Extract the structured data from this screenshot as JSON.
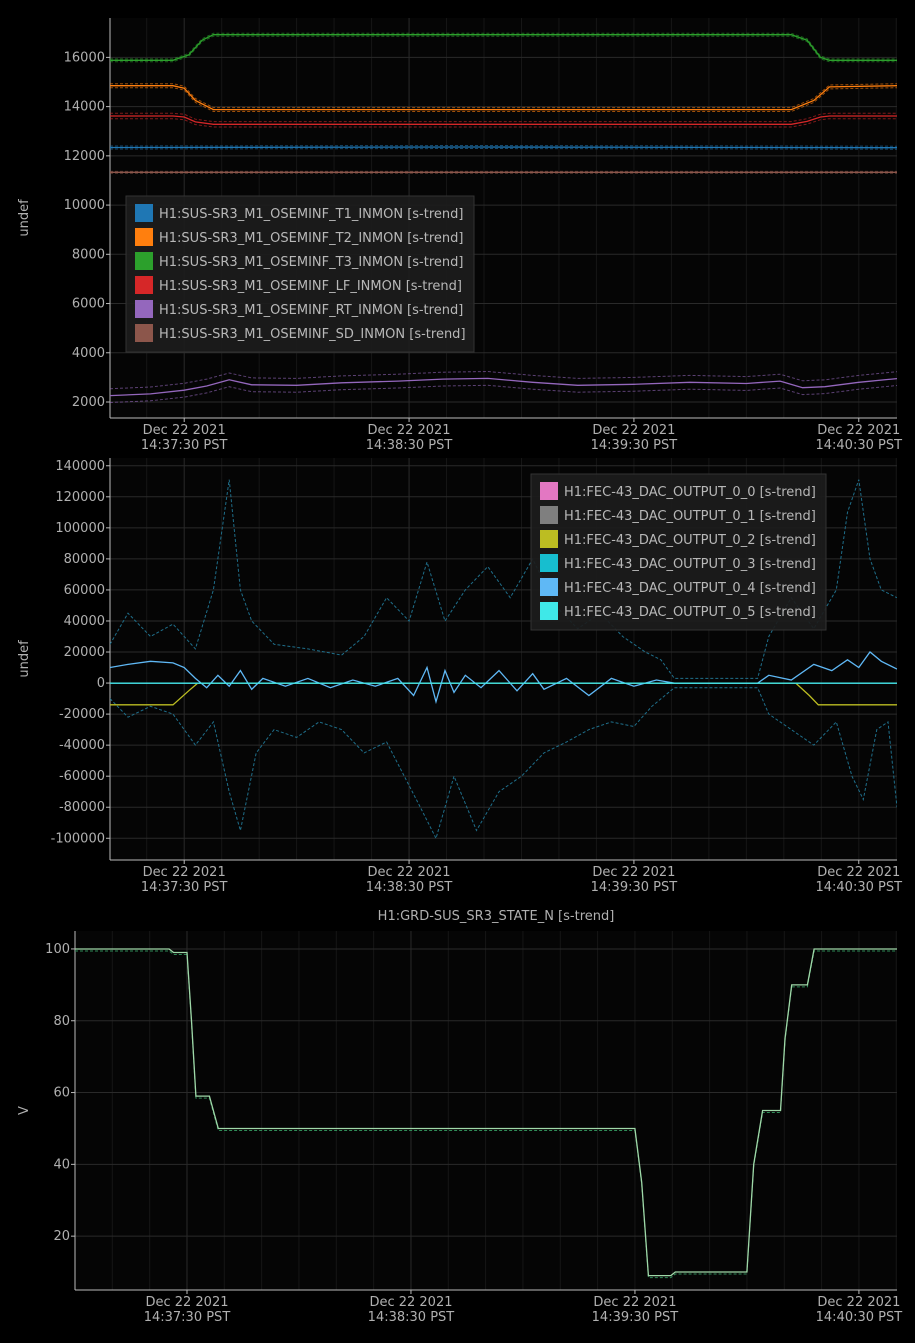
{
  "chart_data": [
    {
      "type": "line",
      "title": "",
      "ylabel": "undef",
      "x_ticks": [
        {
          "t": 0.5,
          "date": "Dec 22 2021",
          "time": "14:37:30 PST"
        },
        {
          "t": 1.5,
          "date": "Dec 22 2021",
          "time": "14:38:30 PST"
        },
        {
          "t": 2.5,
          "date": "Dec 22 2021",
          "time": "14:39:30 PST"
        },
        {
          "t": 3.5,
          "date": "Dec 22 2021",
          "time": "14:40:30 PST"
        }
      ],
      "xlim": [
        0.17,
        3.67
      ],
      "ylim": [
        1350,
        17600
      ],
      "y_ticks": [
        2000,
        4000,
        6000,
        8000,
        10000,
        12000,
        14000,
        16000
      ],
      "grid": true,
      "legend_position": "center-left",
      "series": [
        {
          "name": "H1:SUS-SR3_M1_OSEMINF_T1_INMON [s-trend]",
          "color": "#1f77b4",
          "band": 60,
          "points": [
            [
              0.17,
              12340
            ],
            [
              1.8,
              12360
            ],
            [
              3.67,
              12330
            ]
          ]
        },
        {
          "name": "H1:SUS-SR3_M1_OSEMINF_T2_INMON [s-trend]",
          "color": "#ff7f0e",
          "band": 80,
          "points": [
            [
              0.17,
              14850
            ],
            [
              0.45,
              14850
            ],
            [
              0.5,
              14750
            ],
            [
              0.55,
              14250
            ],
            [
              0.63,
              13880
            ],
            [
              3.2,
              13880
            ],
            [
              3.3,
              14250
            ],
            [
              3.37,
              14800
            ],
            [
              3.67,
              14850
            ]
          ]
        },
        {
          "name": "H1:SUS-SR3_M1_OSEMINF_T3_INMON [s-trend]",
          "color": "#2ca02c",
          "band": 60,
          "points": [
            [
              0.17,
              15880
            ],
            [
              0.45,
              15880
            ],
            [
              0.52,
              16100
            ],
            [
              0.58,
              16700
            ],
            [
              0.63,
              16920
            ],
            [
              3.2,
              16920
            ],
            [
              3.27,
              16700
            ],
            [
              3.33,
              16000
            ],
            [
              3.37,
              15880
            ],
            [
              3.67,
              15880
            ]
          ]
        },
        {
          "name": "H1:SUS-SR3_M1_OSEMINF_LF_INMON [s-trend]",
          "color": "#d62728",
          "band": 110,
          "points": [
            [
              0.17,
              13620
            ],
            [
              0.45,
              13620
            ],
            [
              0.5,
              13580
            ],
            [
              0.55,
              13380
            ],
            [
              0.63,
              13280
            ],
            [
              3.2,
              13280
            ],
            [
              3.27,
              13400
            ],
            [
              3.33,
              13580
            ],
            [
              3.37,
              13620
            ],
            [
              3.67,
              13620
            ]
          ]
        },
        {
          "name": "H1:SUS-SR3_M1_OSEMINF_RT_INMON [s-trend]",
          "color": "#9467bd",
          "band": 280,
          "points": [
            [
              0.17,
              2260
            ],
            [
              0.35,
              2330
            ],
            [
              0.5,
              2480
            ],
            [
              0.6,
              2650
            ],
            [
              0.7,
              2900
            ],
            [
              0.8,
              2700
            ],
            [
              1.0,
              2680
            ],
            [
              1.2,
              2780
            ],
            [
              1.45,
              2850
            ],
            [
              1.65,
              2930
            ],
            [
              1.85,
              2960
            ],
            [
              2.05,
              2800
            ],
            [
              2.25,
              2680
            ],
            [
              2.5,
              2720
            ],
            [
              2.75,
              2800
            ],
            [
              3.0,
              2750
            ],
            [
              3.15,
              2850
            ],
            [
              3.25,
              2580
            ],
            [
              3.35,
              2620
            ],
            [
              3.5,
              2800
            ],
            [
              3.67,
              2950
            ]
          ]
        },
        {
          "name": "H1:SUS-SR3_M1_OSEMINF_SD_INMON [s-trend]",
          "color": "#8c564b",
          "band": 40,
          "points": [
            [
              0.17,
              11330
            ],
            [
              3.67,
              11330
            ]
          ]
        }
      ]
    },
    {
      "type": "line",
      "title": "",
      "ylabel": "undef",
      "x_ticks": [
        {
          "t": 0.5,
          "date": "Dec 22 2021",
          "time": "14:37:30 PST"
        },
        {
          "t": 1.5,
          "date": "Dec 22 2021",
          "time": "14:38:30 PST"
        },
        {
          "t": 2.5,
          "date": "Dec 22 2021",
          "time": "14:39:30 PST"
        },
        {
          "t": 3.5,
          "date": "Dec 22 2021",
          "time": "14:40:30 PST"
        }
      ],
      "xlim": [
        0.17,
        3.67
      ],
      "ylim": [
        -114000,
        145000
      ],
      "y_ticks": [
        -100000,
        -80000,
        -60000,
        -40000,
        -20000,
        0,
        20000,
        40000,
        60000,
        80000,
        100000,
        120000,
        140000
      ],
      "grid": true,
      "legend_position": "top-right",
      "envelope": {
        "color": "#1f6f8b",
        "upper": [
          [
            0.17,
            25000
          ],
          [
            0.25,
            45000
          ],
          [
            0.35,
            30000
          ],
          [
            0.45,
            38000
          ],
          [
            0.55,
            22000
          ],
          [
            0.63,
            60000
          ],
          [
            0.7,
            131000
          ],
          [
            0.75,
            60000
          ],
          [
            0.8,
            40000
          ],
          [
            0.9,
            25000
          ],
          [
            1.05,
            22000
          ],
          [
            1.2,
            18000
          ],
          [
            1.3,
            30000
          ],
          [
            1.4,
            55000
          ],
          [
            1.5,
            40000
          ],
          [
            1.58,
            78000
          ],
          [
            1.66,
            40000
          ],
          [
            1.75,
            60000
          ],
          [
            1.85,
            75000
          ],
          [
            1.95,
            55000
          ],
          [
            2.05,
            80000
          ],
          [
            2.15,
            50000
          ],
          [
            2.25,
            35000
          ],
          [
            2.35,
            45000
          ],
          [
            2.45,
            30000
          ],
          [
            2.55,
            20000
          ],
          [
            2.62,
            15000
          ],
          [
            2.68,
            3000
          ],
          [
            3.05,
            3000
          ],
          [
            3.1,
            30000
          ],
          [
            3.2,
            55000
          ],
          [
            3.3,
            35000
          ],
          [
            3.4,
            60000
          ],
          [
            3.45,
            110000
          ],
          [
            3.5,
            131000
          ],
          [
            3.55,
            80000
          ],
          [
            3.6,
            60000
          ],
          [
            3.67,
            55000
          ]
        ],
        "lower": [
          [
            0.17,
            -10000
          ],
          [
            0.25,
            -22000
          ],
          [
            0.35,
            -15000
          ],
          [
            0.45,
            -20000
          ],
          [
            0.55,
            -40000
          ],
          [
            0.63,
            -25000
          ],
          [
            0.7,
            -70000
          ],
          [
            0.75,
            -95000
          ],
          [
            0.82,
            -45000
          ],
          [
            0.9,
            -30000
          ],
          [
            1.0,
            -35000
          ],
          [
            1.1,
            -25000
          ],
          [
            1.2,
            -30000
          ],
          [
            1.3,
            -45000
          ],
          [
            1.4,
            -38000
          ],
          [
            1.55,
            -80000
          ],
          [
            1.62,
            -100000
          ],
          [
            1.7,
            -60000
          ],
          [
            1.8,
            -95000
          ],
          [
            1.9,
            -70000
          ],
          [
            2.0,
            -60000
          ],
          [
            2.1,
            -45000
          ],
          [
            2.2,
            -38000
          ],
          [
            2.3,
            -30000
          ],
          [
            2.4,
            -25000
          ],
          [
            2.5,
            -28000
          ],
          [
            2.58,
            -15000
          ],
          [
            2.68,
            -3000
          ],
          [
            3.05,
            -3000
          ],
          [
            3.1,
            -20000
          ],
          [
            3.2,
            -30000
          ],
          [
            3.3,
            -40000
          ],
          [
            3.4,
            -25000
          ],
          [
            3.47,
            -60000
          ],
          [
            3.52,
            -75000
          ],
          [
            3.58,
            -30000
          ],
          [
            3.63,
            -25000
          ],
          [
            3.67,
            -80000
          ]
        ]
      },
      "series": [
        {
          "name": "H1:FEC-43_DAC_OUTPUT_0_0 [s-trend]",
          "color": "#e377c2",
          "points": [
            [
              0.17,
              0
            ],
            [
              3.67,
              0
            ]
          ]
        },
        {
          "name": "H1:FEC-43_DAC_OUTPUT_0_1 [s-trend]",
          "color": "#7f7f7f",
          "points": [
            [
              0.17,
              0
            ],
            [
              3.67,
              0
            ]
          ]
        },
        {
          "name": "H1:FEC-43_DAC_OUTPUT_0_2 [s-trend]",
          "color": "#bcbd22",
          "points": [
            [
              0.17,
              -14000
            ],
            [
              0.45,
              -14000
            ],
            [
              0.52,
              -5000
            ],
            [
              0.56,
              0
            ],
            [
              3.22,
              0
            ],
            [
              3.28,
              -8000
            ],
            [
              3.32,
              -14000
            ],
            [
              3.67,
              -14000
            ]
          ]
        },
        {
          "name": "H1:FEC-43_DAC_OUTPUT_0_3 [s-trend]",
          "color": "#17becf",
          "points": [
            [
              0.17,
              0
            ],
            [
              3.67,
              0
            ]
          ]
        },
        {
          "name": "H1:FEC-43_DAC_OUTPUT_0_4 [s-trend]",
          "color": "#5fb8f5",
          "points": [
            [
              0.17,
              10000
            ],
            [
              0.25,
              12000
            ],
            [
              0.35,
              14000
            ],
            [
              0.45,
              13000
            ],
            [
              0.5,
              10000
            ],
            [
              0.55,
              3000
            ],
            [
              0.6,
              -3000
            ],
            [
              0.65,
              5000
            ],
            [
              0.7,
              -2000
            ],
            [
              0.75,
              8000
            ],
            [
              0.8,
              -4000
            ],
            [
              0.85,
              3000
            ],
            [
              0.95,
              -2000
            ],
            [
              1.05,
              3000
            ],
            [
              1.15,
              -3000
            ],
            [
              1.25,
              2000
            ],
            [
              1.35,
              -2000
            ],
            [
              1.45,
              3000
            ],
            [
              1.52,
              -8000
            ],
            [
              1.58,
              10000
            ],
            [
              1.62,
              -12000
            ],
            [
              1.66,
              8000
            ],
            [
              1.7,
              -6000
            ],
            [
              1.75,
              5000
            ],
            [
              1.82,
              -3000
            ],
            [
              1.9,
              8000
            ],
            [
              1.98,
              -5000
            ],
            [
              2.05,
              6000
            ],
            [
              2.1,
              -4000
            ],
            [
              2.2,
              3000
            ],
            [
              2.3,
              -8000
            ],
            [
              2.4,
              3000
            ],
            [
              2.5,
              -2000
            ],
            [
              2.6,
              2000
            ],
            [
              2.68,
              0
            ],
            [
              3.05,
              0
            ],
            [
              3.1,
              5000
            ],
            [
              3.2,
              2000
            ],
            [
              3.3,
              12000
            ],
            [
              3.38,
              8000
            ],
            [
              3.45,
              15000
            ],
            [
              3.5,
              10000
            ],
            [
              3.55,
              20000
            ],
            [
              3.6,
              14000
            ],
            [
              3.67,
              9000
            ]
          ]
        },
        {
          "name": "H1:FEC-43_DAC_OUTPUT_0_5 [s-trend]",
          "color": "#3fe8e8",
          "points": [
            [
              0.17,
              0
            ],
            [
              3.67,
              0
            ]
          ]
        }
      ]
    },
    {
      "type": "line",
      "title": "H1:GRD-SUS_SR3_STATE_N [s-trend]",
      "ylabel": "V",
      "x_ticks": [
        {
          "t": 0.5,
          "date": "Dec 22 2021",
          "time": "14:37:30 PST"
        },
        {
          "t": 1.5,
          "date": "Dec 22 2021",
          "time": "14:38:30 PST"
        },
        {
          "t": 2.5,
          "date": "Dec 22 2021",
          "time": "14:39:30 PST"
        },
        {
          "t": 3.5,
          "date": "Dec 22 2021",
          "time": "14:40:30 PST"
        }
      ],
      "xlim": [
        0.0,
        3.67
      ],
      "ylim": [
        5,
        105
      ],
      "y_ticks": [
        20,
        40,
        60,
        80,
        100
      ],
      "grid": true,
      "legend_position": "",
      "series": [
        {
          "name": "",
          "color": "#9fd8a8",
          "points": [
            [
              0.0,
              100
            ],
            [
              0.42,
              100
            ],
            [
              0.44,
              99
            ],
            [
              0.5,
              99
            ],
            [
              0.52,
              80
            ],
            [
              0.54,
              59
            ],
            [
              0.6,
              59
            ],
            [
              0.64,
              50
            ],
            [
              2.5,
              50
            ],
            [
              2.53,
              35
            ],
            [
              2.56,
              9
            ],
            [
              2.66,
              9
            ],
            [
              2.68,
              10
            ],
            [
              3.0,
              10
            ],
            [
              3.03,
              40
            ],
            [
              3.07,
              55
            ],
            [
              3.15,
              55
            ],
            [
              3.17,
              75
            ],
            [
              3.2,
              90
            ],
            [
              3.27,
              90
            ],
            [
              3.3,
              100
            ],
            [
              3.67,
              100
            ]
          ]
        }
      ]
    }
  ]
}
